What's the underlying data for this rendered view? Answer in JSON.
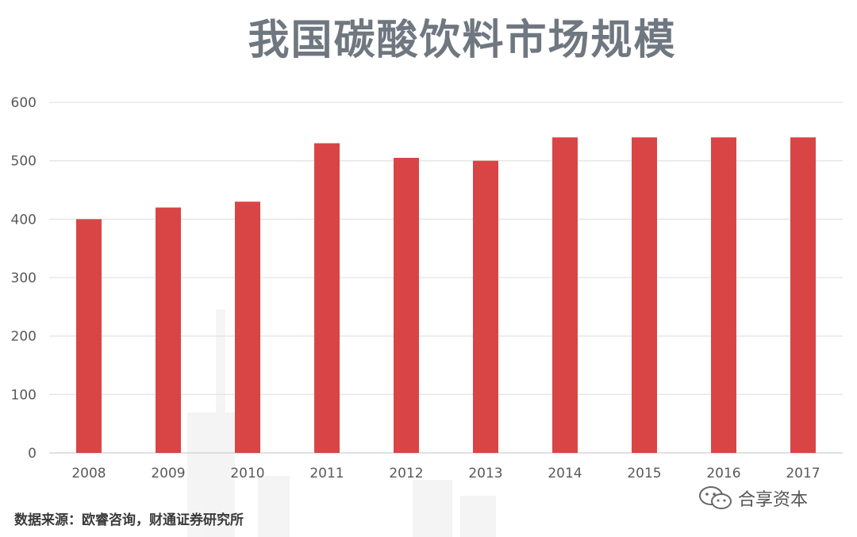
{
  "chart_data": {
    "type": "bar",
    "title": "我国碳酸饮料市场规模",
    "categories": [
      "2008",
      "2009",
      "2010",
      "2011",
      "2012",
      "2013",
      "2014",
      "2015",
      "2016",
      "2017"
    ],
    "values": [
      400,
      420,
      430,
      530,
      505,
      500,
      540,
      540,
      540,
      540
    ],
    "ylim": [
      0,
      600
    ],
    "yticks": [
      0,
      100,
      200,
      300,
      400,
      500,
      600
    ],
    "grid": true,
    "bar_color": "#d94545"
  },
  "source": "数据来源：欧睿咨询，财通证券研究所",
  "watermark": {
    "text": "合享资本",
    "icon": "wechat-icon"
  }
}
